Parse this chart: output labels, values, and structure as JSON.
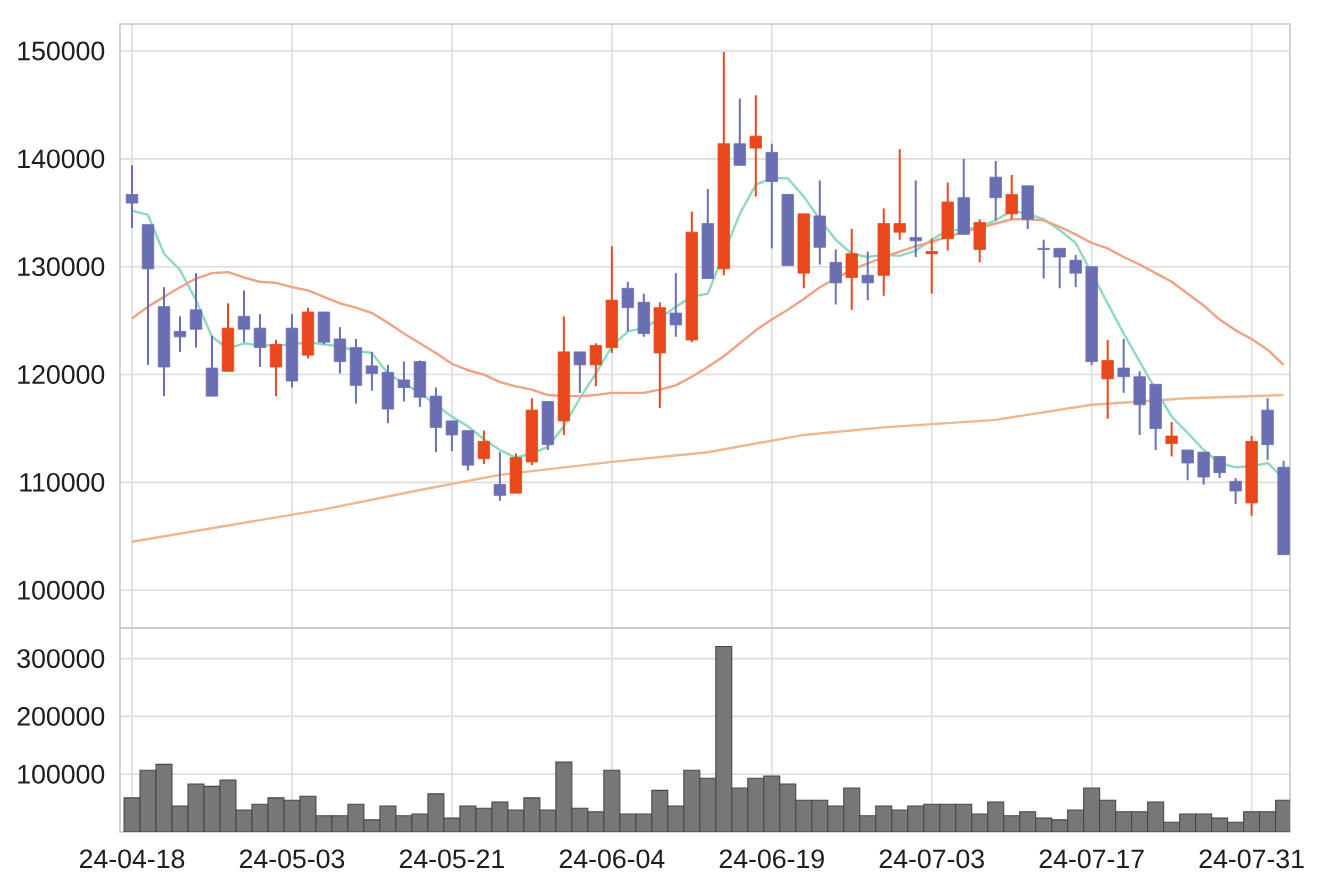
{
  "chart_data": [
    {
      "type": "candlestick",
      "ohlc": [
        [
          136700,
          139400,
          133600,
          135900
        ],
        [
          133900,
          133900,
          120900,
          129800
        ],
        [
          126300,
          128100,
          118000,
          120700
        ],
        [
          124000,
          125400,
          122100,
          123500
        ],
        [
          126000,
          129400,
          122500,
          124200
        ],
        [
          120600,
          123600,
          118000,
          118000
        ],
        [
          120300,
          126600,
          120300,
          124300
        ],
        [
          125400,
          127800,
          123000,
          124200
        ],
        [
          124300,
          125600,
          120700,
          122500
        ],
        [
          120700,
          123200,
          118000,
          122800
        ],
        [
          124300,
          125600,
          118800,
          119400
        ],
        [
          121800,
          126200,
          121500,
          125800
        ],
        [
          125800,
          125800,
          122800,
          123000
        ],
        [
          123300,
          124400,
          120100,
          121200
        ],
        [
          122500,
          123300,
          117300,
          119000
        ],
        [
          120800,
          122100,
          118500,
          120100
        ],
        [
          120200,
          120900,
          115500,
          116800
        ],
        [
          119500,
          121200,
          117500,
          118800
        ],
        [
          121200,
          121300,
          117000,
          117900
        ],
        [
          118000,
          118800,
          112800,
          115100
        ],
        [
          115700,
          115700,
          112900,
          114400
        ],
        [
          114800,
          114800,
          111100,
          111600
        ],
        [
          112200,
          114800,
          111700,
          113800
        ],
        [
          109800,
          112800,
          108300,
          108800
        ],
        [
          109000,
          112700,
          109000,
          112300
        ],
        [
          111900,
          117800,
          111600,
          116700
        ],
        [
          117500,
          117500,
          113000,
          113500
        ],
        [
          115700,
          125400,
          114400,
          122100
        ],
        [
          122100,
          122100,
          118300,
          120900
        ],
        [
          120900,
          122900,
          118900,
          122700
        ],
        [
          122500,
          131900,
          122000,
          126900
        ],
        [
          128000,
          128600,
          124000,
          126200
        ],
        [
          126700,
          127500,
          123500,
          123800
        ],
        [
          122000,
          126700,
          116900,
          126200
        ],
        [
          125700,
          129400,
          123500,
          124600
        ],
        [
          123200,
          135100,
          123000,
          133200
        ],
        [
          134000,
          137200,
          128900,
          128900
        ],
        [
          129800,
          149900,
          129200,
          141400
        ],
        [
          141400,
          145600,
          139400,
          139400
        ],
        [
          141000,
          145900,
          136500,
          142100
        ],
        [
          140600,
          141400,
          131700,
          137900
        ],
        [
          136700,
          136700,
          130100,
          130100
        ],
        [
          129400,
          134900,
          128000,
          134900
        ],
        [
          134700,
          138000,
          130200,
          131800
        ],
        [
          130400,
          131600,
          126500,
          128500
        ],
        [
          129000,
          133500,
          126000,
          131200
        ],
        [
          129200,
          131400,
          126900,
          128500
        ],
        [
          129200,
          135400,
          127300,
          134000
        ],
        [
          133200,
          140900,
          132500,
          134000
        ],
        [
          132700,
          138000,
          130900,
          132400
        ],
        [
          131200,
          132600,
          127500,
          131400
        ],
        [
          132600,
          137800,
          131500,
          136000
        ],
        [
          136400,
          140000,
          133000,
          133000
        ],
        [
          131600,
          134400,
          130400,
          134100
        ],
        [
          138300,
          139800,
          134300,
          136400
        ],
        [
          134900,
          138500,
          134400,
          136700
        ],
        [
          137500,
          137500,
          133500,
          134400
        ],
        [
          131700,
          132500,
          128900,
          131600
        ],
        [
          131700,
          131700,
          128000,
          130900
        ],
        [
          130600,
          131100,
          128100,
          129400
        ],
        [
          130000,
          130000,
          120900,
          121200
        ],
        [
          119600,
          123200,
          115900,
          121300
        ],
        [
          120600,
          123300,
          118300,
          119800
        ],
        [
          119800,
          120300,
          114400,
          117200
        ],
        [
          119100,
          119100,
          113000,
          115000
        ],
        [
          113600,
          115600,
          112400,
          114300
        ],
        [
          113000,
          113000,
          110200,
          111800
        ],
        [
          112800,
          112800,
          109800,
          110500
        ],
        [
          112400,
          112400,
          110400,
          110900
        ],
        [
          110100,
          110400,
          108000,
          109200
        ],
        [
          108100,
          114300,
          106900,
          113800
        ],
        [
          116700,
          117800,
          112100,
          113500
        ],
        [
          111400,
          112000,
          103300,
          103300
        ]
      ],
      "colors": [
        "#6a6fb3",
        "#6a6fb3",
        "#6a6fb3",
        "#6a6fb3",
        "#6a6fb3",
        "#6a6fb3",
        "#e8481c",
        "#6a6fb3",
        "#6a6fb3",
        "#e8481c",
        "#6a6fb3",
        "#e8481c",
        "#6a6fb3",
        "#6a6fb3",
        "#6a6fb3",
        "#6a6fb3",
        "#6a6fb3",
        "#6a6fb3",
        "#6a6fb3",
        "#6a6fb3",
        "#6a6fb3",
        "#6a6fb3",
        "#e8481c",
        "#6a6fb3",
        "#e8481c",
        "#e8481c",
        "#6a6fb3",
        "#e8481c",
        "#6a6fb3",
        "#e8481c",
        "#e8481c",
        "#6a6fb3",
        "#6a6fb3",
        "#e8481c",
        "#6a6fb3",
        "#e8481c",
        "#6a6fb3",
        "#e8481c",
        "#6a6fb3",
        "#e8481c",
        "#6a6fb3",
        "#6a6fb3",
        "#e8481c",
        "#6a6fb3",
        "#6a6fb3",
        "#e8481c",
        "#6a6fb3",
        "#e8481c",
        "#e8481c",
        "#6a6fb3",
        "#e8481c",
        "#e8481c",
        "#6a6fb3",
        "#e8481c",
        "#6a6fb3",
        "#e8481c",
        "#6a6fb3",
        "#6a6fb3",
        "#6a6fb3",
        "#6a6fb3",
        "#6a6fb3",
        "#e8481c",
        "#6a6fb3",
        "#6a6fb3",
        "#6a6fb3",
        "#e8481c",
        "#6a6fb3",
        "#6a6fb3",
        "#6a6fb3",
        "#6a6fb3",
        "#e8481c",
        "#6a6fb3",
        "#6a6fb3"
      ],
      "series": [
        {
          "type": "line",
          "color": "#8fd9c0",
          "values": [
            135200,
            134800,
            131200,
            129700,
            126900,
            123500,
            122400,
            122900,
            122700,
            122700,
            122800,
            123000,
            122800,
            122600,
            122200,
            122000,
            120100,
            119200,
            118300,
            117200,
            116100,
            115200,
            114000,
            113000,
            112300,
            112700,
            113300,
            115200,
            117800,
            120100,
            122600,
            124000,
            124300,
            125200,
            126300,
            127200,
            127500,
            null,
            134900,
            137600,
            138200,
            138200,
            136500,
            134400,
            132500,
            131200,
            130900,
            131100,
            131000,
            131500,
            132500,
            133400,
            133400,
            133700,
            134300,
            135200,
            134900,
            134400,
            133400,
            132200,
            129400,
            126600,
            123800,
            121200,
            118600,
            116100,
            114600,
            113000,
            111800,
            111400,
            111500,
            111800,
            110400
          ]
        },
        {
          "type": "line",
          "color": "#f0a285",
          "values": [
            125200,
            126300,
            127200,
            128100,
            128900,
            129400,
            129500,
            129000,
            128600,
            128500,
            128100,
            127800,
            127200,
            126600,
            126200,
            125700,
            124800,
            123800,
            122900,
            122000,
            121000,
            120400,
            120000,
            119300,
            118900,
            118600,
            118100,
            118000,
            118000,
            118100,
            118300,
            118300,
            118300,
            118600,
            119000,
            119800,
            120700,
            121700,
            122900,
            124100,
            125100,
            126000,
            127000,
            128100,
            128900,
            129700,
            130300,
            130900,
            131400,
            131900,
            132300,
            132800,
            133200,
            133600,
            134000,
            134400,
            134400,
            134300,
            133700,
            133000,
            132200,
            131700,
            130900,
            130200,
            129400,
            128600,
            127500,
            126400,
            125100,
            124100,
            123300,
            122300,
            120900
          ]
        },
        {
          "type": "line",
          "color": "#eeb78c",
          "values": [
            104500,
            null,
            null,
            null,
            null,
            null,
            106000,
            null,
            null,
            null,
            null,
            null,
            107500,
            null,
            null,
            null,
            null,
            null,
            109300,
            null,
            null,
            null,
            null,
            110700,
            null,
            null,
            null,
            null,
            null,
            null,
            111900,
            null,
            null,
            null,
            null,
            null,
            112800,
            null,
            null,
            null,
            null,
            null,
            114400,
            null,
            null,
            null,
            null,
            115100,
            null,
            null,
            null,
            null,
            null,
            null,
            115800,
            null,
            null,
            null,
            null,
            null,
            117200,
            null,
            null,
            null,
            null,
            null,
            117800,
            null,
            null,
            null,
            null,
            null,
            118100
          ]
        }
      ],
      "ylim": [
        96500,
        152500
      ],
      "yticks": [
        100000,
        110000,
        120000,
        130000,
        140000,
        150000
      ],
      "grid": true,
      "tick_labels": "y"
    },
    {
      "type": "bar",
      "categories": [
        "24-04-18",
        null,
        null,
        null,
        null,
        null,
        null,
        null,
        null,
        null,
        "24-05-03",
        null,
        null,
        null,
        null,
        null,
        null,
        null,
        null,
        null,
        "24-05-21",
        null,
        null,
        null,
        null,
        null,
        null,
        null,
        null,
        null,
        "24-06-04",
        null,
        null,
        null,
        null,
        null,
        null,
        null,
        null,
        null,
        "24-06-19",
        null,
        null,
        null,
        null,
        null,
        null,
        null,
        null,
        null,
        "24-07-03",
        null,
        null,
        null,
        null,
        null,
        null,
        null,
        null,
        null,
        "24-07-17",
        null,
        null,
        null,
        null,
        null,
        null,
        null,
        null,
        null,
        "24-07-31",
        null,
        null
      ],
      "values": [
        59000,
        107000,
        117000,
        45000,
        83000,
        79000,
        90000,
        38000,
        48000,
        59000,
        55000,
        62000,
        28000,
        28000,
        48000,
        21000,
        45000,
        28000,
        31000,
        66000,
        24000,
        45000,
        41000,
        52000,
        38000,
        59000,
        38000,
        121000,
        41000,
        35000,
        107000,
        31000,
        31000,
        72000,
        45000,
        107000,
        93000,
        321000,
        76000,
        93000,
        97000,
        83000,
        55000,
        55000,
        45000,
        76000,
        28000,
        45000,
        38000,
        45000,
        48000,
        48000,
        48000,
        31000,
        52000,
        28000,
        35000,
        24000,
        21000,
        38000,
        76000,
        55000,
        35000,
        35000,
        52000,
        17000,
        31000,
        31000,
        24000,
        17000,
        35000,
        35000,
        55000
      ],
      "color": "#777777",
      "ylim": [
        0,
        353000
      ],
      "yticks": [
        100000,
        200000,
        300000
      ],
      "grid": true
    }
  ]
}
